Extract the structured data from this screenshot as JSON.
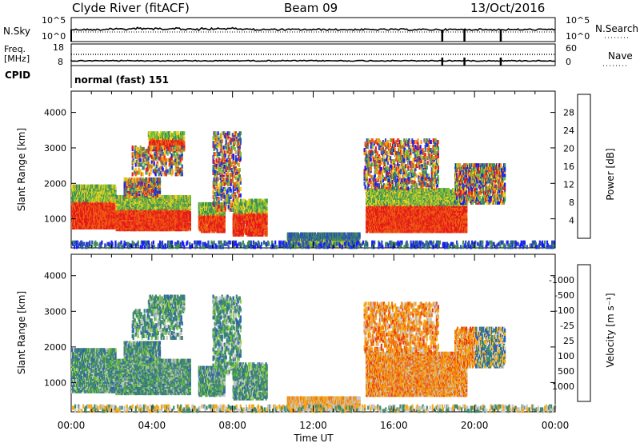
{
  "header": {
    "station": "Clyde River (fitACF)",
    "beam": "Beam 09",
    "date": "13/Oct/2016"
  },
  "status_panel": {
    "left_label_1": "N.Sky",
    "left_label_2a": "Freq.",
    "left_label_2b": "[MHz]",
    "left_label_3": "CPID",
    "nsky_ticks": [
      "10^5",
      "10^0"
    ],
    "freq_ticks": [
      "18",
      "8"
    ],
    "right_ticks_1": [
      "10^5",
      "10^0"
    ],
    "right_ticks_2": [
      "60",
      "0"
    ],
    "right_label_1": "N.Search",
    "right_label_2": "Nave",
    "cpid_text": "normal (fast) 151"
  },
  "chart_data": [
    {
      "type": "heatmap",
      "name": "power-panel",
      "ylabel": "Slant Range [km]",
      "xlabel": "",
      "yticks": [
        1000,
        2000,
        3000,
        4000
      ],
      "ylim": [
        180,
        4600
      ],
      "colorbar_label": "Power [dB]",
      "colorbar_ticks": [
        "4",
        "8",
        "12",
        "16",
        "20",
        "24",
        "28"
      ],
      "colorbar_colors": [
        "#1a1aff",
        "#2b4fb8",
        "#3f8a5a",
        "#6fbf3a",
        "#f0d020",
        "#f59b1a",
        "#ef5a12",
        "#e41a1a"
      ]
    },
    {
      "type": "heatmap",
      "name": "velocity-panel",
      "ylabel": "Slant Range [km]",
      "xlabel": "Time UT",
      "yticks": [
        1000,
        2000,
        3000,
        4000
      ],
      "ylim": [
        180,
        4600
      ],
      "xticks": [
        "00:00",
        "04:00",
        "08:00",
        "12:00",
        "16:00",
        "20:00",
        "00:00"
      ],
      "colorbar_label": "Velocity [m s⁻¹]",
      "colorbar_ticks": [
        "1000",
        "500",
        "100",
        "25",
        "-25",
        "-100",
        "-500",
        "-1000"
      ],
      "colorbar_colors": [
        "#1a2ec8",
        "#2f62b0",
        "#3f8a6a",
        "#7ccd3a",
        "#c8c8c8",
        "#f5a81a",
        "#f07c10",
        "#ea4010",
        "#e41a1a"
      ]
    }
  ]
}
